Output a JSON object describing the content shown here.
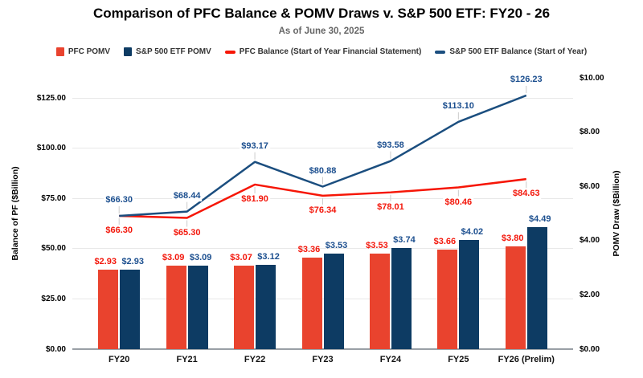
{
  "colors": {
    "background": "#ffffff",
    "grid": "#e8e8e8",
    "baseline": "#9aa0a6",
    "leader": "#cccccc",
    "title_text": "#000000",
    "subtitle_text": "#666666",
    "legend_text": "#333333",
    "axis_text": "#000000"
  },
  "chart_data": {
    "type": "combo-bar-line-dual-axis",
    "title": "Comparison of PFC Balance & POMV Draws v. S&P 500 ETF: FY20 - 26",
    "subtitle": "As of June 30, 2025",
    "categories": [
      "FY20",
      "FY21",
      "FY22",
      "FY23",
      "FY24",
      "FY25",
      "FY26 (Prelim)"
    ],
    "value_prefix": "$",
    "grid": true,
    "legend_position": "top",
    "series": [
      {
        "name": "PFC POMV",
        "type": "bar",
        "axis": "right",
        "color": "#e9432e",
        "label_color": "#f3170b",
        "values": [
          2.93,
          3.09,
          3.07,
          3.36,
          3.53,
          3.66,
          3.8
        ]
      },
      {
        "name": "S&P 500 ETF POMV",
        "type": "bar",
        "axis": "right",
        "color": "#0d3b63",
        "label_color": "#1c4f8f",
        "values": [
          2.93,
          3.09,
          3.12,
          3.53,
          3.74,
          4.02,
          4.49
        ]
      },
      {
        "name": "PFC Balance (Start of Year Financial Statement)",
        "type": "line",
        "axis": "left",
        "color": "#f61606",
        "label_color": "#f3170b",
        "label_side": "below",
        "values": [
          66.3,
          65.3,
          81.9,
          76.34,
          78.01,
          80.46,
          84.63
        ]
      },
      {
        "name": "S&P 500 ETF Balance (Start of Year)",
        "type": "line",
        "axis": "left",
        "color": "#1b4e7f",
        "label_color": "#1c4f8f",
        "label_side": "above",
        "values": [
          66.3,
          68.44,
          93.17,
          80.88,
          93.58,
          113.1,
          126.23
        ]
      }
    ],
    "left_axis": {
      "title": "Balance of PF ($Billion)",
      "max": 135,
      "ticks": [
        {
          "label": "$0.00",
          "value": 0
        },
        {
          "label": "$25.00",
          "value": 25
        },
        {
          "label": "$50.00",
          "value": 50
        },
        {
          "label": "$75.00",
          "value": 75
        },
        {
          "label": "$100.00",
          "value": 100
        },
        {
          "label": "$125.00",
          "value": 125
        }
      ]
    },
    "right_axis": {
      "title": "POMV Draw ($Billion)",
      "max": 10,
      "ticks": [
        {
          "label": "$0.00",
          "value": 0
        },
        {
          "label": "$2.00",
          "value": 2
        },
        {
          "label": "$4.00",
          "value": 4
        },
        {
          "label": "$6.00",
          "value": 6
        },
        {
          "label": "$8.00",
          "value": 8
        },
        {
          "label": "$10.00",
          "value": 10
        }
      ]
    },
    "legend": [
      {
        "label": "PFC POMV",
        "swatch": "square",
        "color": "#e9432e"
      },
      {
        "label": "S&P 500 ETF POMV",
        "swatch": "square",
        "color": "#0d3b63"
      },
      {
        "label": "PFC Balance (Start of Year Financial Statement)",
        "swatch": "dash",
        "color": "#f61606"
      },
      {
        "label": "S&P 500 ETF Balance (Start of Year)",
        "swatch": "dash",
        "color": "#1b4e7f"
      }
    ]
  }
}
